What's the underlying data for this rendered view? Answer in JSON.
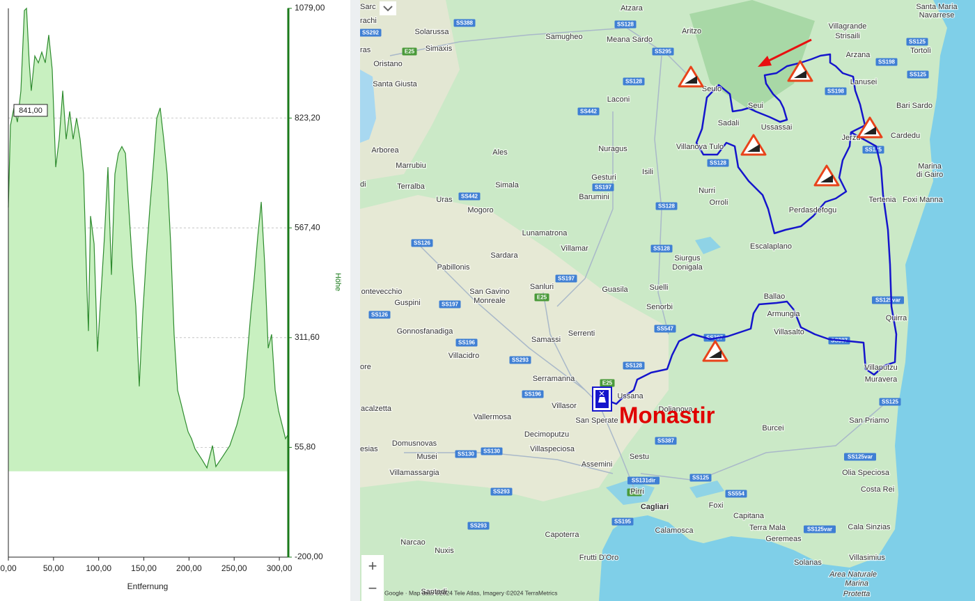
{
  "chart_data": {
    "type": "area",
    "x_label": "Entfernung",
    "y_label": "Höhe",
    "annotation": "841,00",
    "color": "#2e8b2e",
    "fill_color": "#c8f0c0",
    "axis_color": "#1a7a1a",
    "x": [
      0,
      2.3,
      6.2,
      10,
      13.9,
      17.7,
      20.1,
      23.1,
      25.4,
      29.3,
      33.2,
      37,
      40.9,
      44.7,
      48.6,
      52.4,
      56.3,
      60.2,
      64,
      67.9,
      71.7,
      75.6,
      79.4,
      83.3,
      87.1,
      88.7,
      91,
      94.9,
      98.7,
      102.6,
      106.4,
      110.3,
      114.1,
      118,
      121.8,
      125.7,
      129.6,
      133.4,
      137.3,
      141.1,
      145,
      148.8,
      152.7,
      156.6,
      160.4,
      164.3,
      168.1,
      172,
      175.8,
      179.7,
      183.5,
      187.4,
      191.3,
      195.1,
      199,
      202.8,
      206.7,
      214.4,
      219.8,
      226,
      229.8,
      237.5,
      245.2,
      253,
      260.7,
      268.4,
      272.2,
      276.1,
      280,
      283.8,
      287.7,
      291.5,
      295.4,
      299.2,
      303.1,
      306.9,
      309.2
    ],
    "values": [
      615,
      806,
      847,
      814,
      887,
      1074,
      1079,
      952,
      887,
      968,
      952,
      977,
      952,
      1017,
      936,
      709,
      774,
      887,
      774,
      839,
      774,
      823,
      774,
      693,
      417,
      327,
      595,
      530,
      279,
      417,
      547,
      709,
      458,
      693,
      741,
      757,
      741,
      612,
      482,
      384,
      198,
      368,
      498,
      612,
      709,
      823,
      847,
      774,
      693,
      530,
      319,
      189,
      157,
      124,
      92,
      76,
      52,
      27,
      8,
      60,
      11,
      35,
      60,
      108,
      173,
      368,
      449,
      547,
      628,
      482,
      287,
      319,
      189,
      141,
      108,
      76,
      84
    ],
    "xlim": [
      0,
      309.2
    ],
    "ylim": [
      -200,
      1079
    ],
    "xticks": [
      {
        "value": 0,
        "label": "0,00"
      },
      {
        "value": 50,
        "label": "50,00"
      },
      {
        "value": 100,
        "label": "100,00"
      },
      {
        "value": 150,
        "label": "150,00"
      },
      {
        "value": 200,
        "label": "200,00"
      },
      {
        "value": 250,
        "label": "250,00"
      },
      {
        "value": 300,
        "label": "300,00"
      }
    ],
    "yticks": [
      {
        "value": -200,
        "label": "-200,00"
      },
      {
        "value": 55.8,
        "label": "55,80"
      },
      {
        "value": 311.6,
        "label": "311,60"
      },
      {
        "value": 567.4,
        "label": "567,40"
      },
      {
        "value": 823.2,
        "label": "823,20"
      },
      {
        "value": 1079,
        "label": "1079,00"
      }
    ],
    "grid": true
  },
  "map": {
    "highlight": "Monastir",
    "zoom_in": "+",
    "zoom_out": "−",
    "attribution": "Google · Map data ©2024 Tele Atlas, Imagery ©2024 TerraMetrics",
    "places": [
      "Sarc",
      "Atzara",
      "Santa Maria",
      "Navarrese",
      "rachi",
      "Villagrande",
      "Strisaili",
      "Aritzo",
      "Solarussa",
      "Samugheo",
      "Meana Sardo",
      "Simaxis",
      "ras",
      "Tortolì",
      "Arzana",
      "Oristano",
      "Lanusei",
      "Santa Giusta",
      "Seulo",
      "Laconi",
      "Bari Sardo",
      "Seui",
      "Sadali",
      "Ussassai",
      "Cardedu",
      "Jerzu",
      "Villanova Tulo",
      "Nuragus",
      "Arborea",
      "Ales",
      "Marrubiu",
      "Marina",
      "di Gairo",
      "Isili",
      "Gesturi",
      "di",
      "Simala",
      "Terralba",
      "Nurri",
      "Barumini",
      "Uras",
      "Tertenia",
      "Foxi Manna",
      "Orroli",
      "Mogoro",
      "Perdasdefogu",
      "Lunamatrona",
      "Escalaplano",
      "Villamar",
      "Sardara",
      "Siurgus",
      "Donigala",
      "Pabillonis",
      "Suelli",
      "Sanluri",
      "Guasila",
      "ontevecchio",
      "San Gavino",
      "Monreale",
      "Ballao",
      "Guspini",
      "Senorbi",
      "Armungia",
      "Quirra",
      "Gonnosfanadiga",
      "Villasalto",
      "Serrenti",
      "Samassi",
      "Villacidro",
      "ore",
      "Villaputzu",
      "Serramanna",
      "Muravera",
      "Ussana",
      "Villasor",
      "acalzetta",
      "Dolianova",
      "Vallermosa",
      "San Sperate",
      "San Priamo",
      "Burcei",
      "Decimoputzu",
      "Domusnovas",
      "esias",
      "Villaspeciosa",
      "Sestu",
      "Musei",
      "Assemini",
      "Villamassargia",
      "Olia Speciosa",
      "Costa Rei",
      "Pirri",
      "Foxi",
      "Cagliari",
      "Capitana",
      "Cala Sinzias",
      "Terra Mala",
      "Calamosca",
      "Capoterra",
      "Geremeas",
      "Narcao",
      "Nuxis",
      "Frutti D'Oro",
      "Villasimius",
      "Solanas",
      "Santadi",
      "Area Naturale",
      "Marina",
      "Protetta"
    ],
    "roads": [
      "SS388",
      "SS128",
      "SS292",
      "E25",
      "SS295",
      "SS128",
      "SS198",
      "SS198",
      "SS125",
      "SS125",
      "SS442",
      "SS442",
      "SS197",
      "SS128",
      "SS128",
      "SS125",
      "SS126",
      "SS128",
      "SS197",
      "E25",
      "SS197",
      "SS126",
      "SS196",
      "SS547",
      "SS387",
      "SS387",
      "SS293",
      "SS128",
      "SS125var",
      "E25",
      "SS196",
      "SS125",
      "SS387",
      "SS130",
      "SS130",
      "SS125var",
      "SS131dir",
      "SS125",
      "E25",
      "SS554",
      "SS293",
      "SS195",
      "SS293",
      "SS125var"
    ]
  }
}
